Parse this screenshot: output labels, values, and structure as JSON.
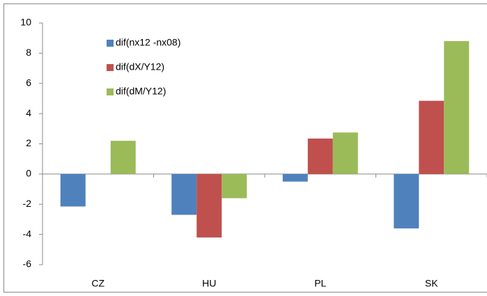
{
  "chart_data": {
    "type": "bar",
    "categories": [
      "CZ",
      "HU",
      "PL",
      "SK"
    ],
    "series": [
      {
        "name": "dif(nx12 -nx08)",
        "color": "#4f81bd",
        "values": [
          -2.15,
          -2.7,
          -0.5,
          -3.6
        ]
      },
      {
        "name": "dif(dX/Y12)",
        "color": "#c0504d",
        "values": [
          0,
          -4.2,
          2.35,
          4.85
        ]
      },
      {
        "name": "dif(dM/Y12)",
        "color": "#9bbb59",
        "values": [
          2.2,
          -1.6,
          2.75,
          8.8
        ]
      }
    ],
    "ylim": [
      -6,
      10
    ],
    "yticks": [
      -6,
      -4,
      -2,
      0,
      2,
      4,
      6,
      8,
      10
    ],
    "grid": false,
    "legend": "top-left"
  }
}
